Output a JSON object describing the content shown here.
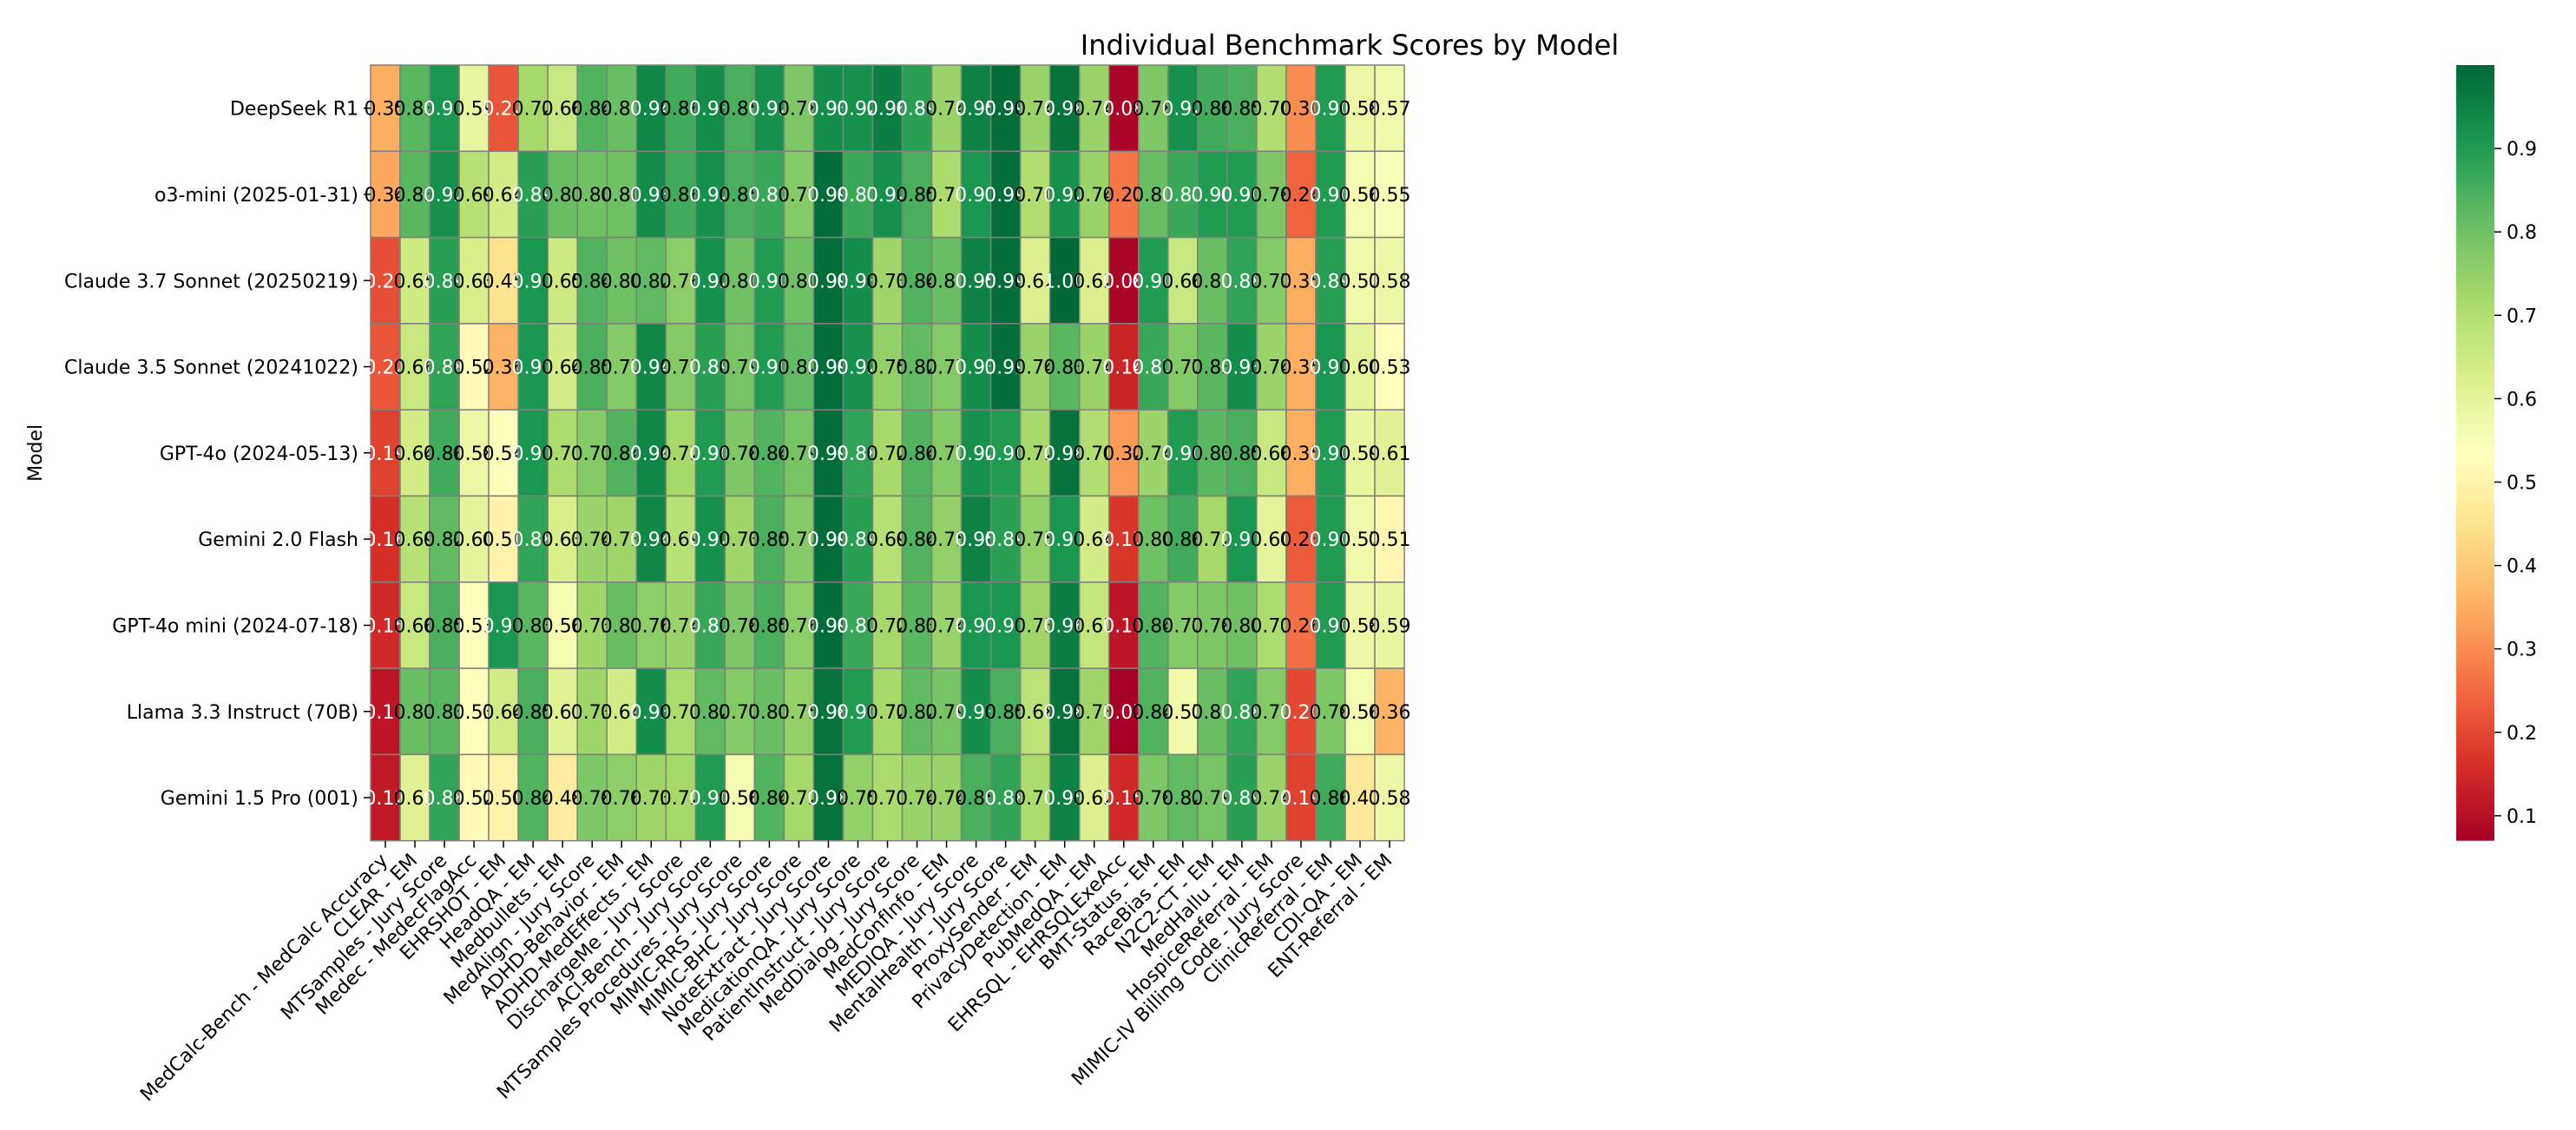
{
  "chart_data": {
    "type": "heatmap",
    "title": "Individual Benchmark Scores by Model",
    "xlabel": "",
    "ylabel": "Model",
    "colormap": "RdYlGn",
    "color_range": [
      0.07,
      1.0
    ],
    "colorbar_ticks": [
      "0.1",
      "0.2",
      "0.3",
      "0.4",
      "0.5",
      "0.6",
      "0.7",
      "0.8",
      "0.9"
    ],
    "rows": [
      "DeepSeek R1",
      "o3-mini (2025-01-31)",
      "Claude 3.7 Sonnet (20250219)",
      "Claude 3.5 Sonnet (20241022)",
      "GPT-4o (2024-05-13)",
      "Gemini 2.0 Flash",
      "GPT-4o mini (2024-07-18)",
      "Llama 3.3 Instruct (70B)",
      "Gemini 1.5 Pro (001)"
    ],
    "columns": [
      "MedCalc-Bench - MedCalc Accuracy",
      "CLEAR - EM",
      "MTSamples - Jury Score",
      "Medec - MedecFlagAcc",
      "EHRSHOT - EM",
      "HeadQA - EM",
      "Medbullets - EM",
      "MedAlign - Jury Score",
      "ADHD-Behavior - EM",
      "ADHD-MedEffects - EM",
      "DischargeMe - Jury Score",
      "ACI-Bench - Jury Score",
      "MTSamples Procedures - Jury Score",
      "MIMIC-RRS - Jury Score",
      "MIMIC-BHC - Jury Score",
      "NoteExtract - Jury Score",
      "MedicationQA - Jury Score",
      "PatientInstruct - Jury Score",
      "MedDialog - Jury Score",
      "MedConfInfo - EM",
      "MEDIQA - Jury Score",
      "MentalHealth - Jury Score",
      "ProxySender - EM",
      "PrivacyDetection - EM",
      "PubMedQA - EM",
      "EHRSQL - EHRSQLExeAcc",
      "BMT-Status - EM",
      "RaceBias - EM",
      "N2C2-CT - EM",
      "MedHallu - EM",
      "HospiceReferral - EM",
      "MIMIC-IV Billing Code - Jury Score",
      "ClinicReferral - EM",
      "CDI-QA - EM",
      "ENT-Referral - EM"
    ],
    "values": [
      [
        0.35,
        0.83,
        0.91,
        0.59,
        0.22,
        0.72,
        0.66,
        0.84,
        0.81,
        0.94,
        0.86,
        0.93,
        0.85,
        0.92,
        0.78,
        0.93,
        0.92,
        0.96,
        0.89,
        0.74,
        0.95,
        0.99,
        0.74,
        0.98,
        0.74,
        0.08,
        0.78,
        0.92,
        0.86,
        0.85,
        0.7,
        0.3,
        0.9,
        0.58,
        0.57
      ],
      [
        0.34,
        0.83,
        0.92,
        0.69,
        0.64,
        0.89,
        0.81,
        0.8,
        0.8,
        0.93,
        0.86,
        0.92,
        0.85,
        0.87,
        0.77,
        0.99,
        0.87,
        0.92,
        0.85,
        0.71,
        0.91,
        0.99,
        0.7,
        0.92,
        0.74,
        0.27,
        0.81,
        0.87,
        0.9,
        0.9,
        0.78,
        0.24,
        0.9,
        0.56,
        0.55
      ],
      [
        0.21,
        0.65,
        0.89,
        0.63,
        0.45,
        0.91,
        0.65,
        0.84,
        0.8,
        0.82,
        0.76,
        0.92,
        0.8,
        0.9,
        0.8,
        0.99,
        0.93,
        0.73,
        0.84,
        0.81,
        0.95,
        0.99,
        0.62,
        1.0,
        0.62,
        0.08,
        0.9,
        0.66,
        0.81,
        0.88,
        0.77,
        0.35,
        0.89,
        0.57,
        0.58
      ],
      [
        0.22,
        0.66,
        0.88,
        0.52,
        0.36,
        0.91,
        0.64,
        0.85,
        0.77,
        0.94,
        0.77,
        0.89,
        0.79,
        0.9,
        0.82,
        0.99,
        0.92,
        0.75,
        0.82,
        0.77,
        0.93,
        0.99,
        0.74,
        0.83,
        0.74,
        0.14,
        0.87,
        0.77,
        0.83,
        0.93,
        0.74,
        0.35,
        0.91,
        0.6,
        0.53
      ],
      [
        0.19,
        0.64,
        0.86,
        0.58,
        0.54,
        0.91,
        0.71,
        0.77,
        0.84,
        0.94,
        0.72,
        0.9,
        0.78,
        0.84,
        0.79,
        0.99,
        0.88,
        0.72,
        0.84,
        0.77,
        0.92,
        0.9,
        0.72,
        0.98,
        0.7,
        0.32,
        0.74,
        0.9,
        0.83,
        0.85,
        0.66,
        0.35,
        0.9,
        0.59,
        0.61
      ],
      [
        0.16,
        0.69,
        0.82,
        0.6,
        0.5,
        0.88,
        0.63,
        0.74,
        0.73,
        0.94,
        0.69,
        0.92,
        0.73,
        0.85,
        0.77,
        0.99,
        0.89,
        0.69,
        0.84,
        0.75,
        0.95,
        0.89,
        0.75,
        0.91,
        0.64,
        0.17,
        0.8,
        0.86,
        0.72,
        0.91,
        0.6,
        0.23,
        0.9,
        0.57,
        0.51
      ],
      [
        0.15,
        0.66,
        0.85,
        0.53,
        0.91,
        0.83,
        0.56,
        0.73,
        0.81,
        0.76,
        0.74,
        0.87,
        0.78,
        0.85,
        0.76,
        0.99,
        0.87,
        0.72,
        0.83,
        0.74,
        0.91,
        0.91,
        0.73,
        0.96,
        0.67,
        0.11,
        0.84,
        0.77,
        0.78,
        0.8,
        0.71,
        0.26,
        0.9,
        0.58,
        0.59
      ],
      [
        0.11,
        0.81,
        0.83,
        0.53,
        0.64,
        0.85,
        0.61,
        0.73,
        0.64,
        0.93,
        0.71,
        0.82,
        0.77,
        0.81,
        0.75,
        0.98,
        0.9,
        0.72,
        0.82,
        0.79,
        0.93,
        0.85,
        0.68,
        0.98,
        0.73,
        0.07,
        0.84,
        0.57,
        0.81,
        0.88,
        0.77,
        0.2,
        0.78,
        0.56,
        0.36
      ],
      [
        0.12,
        0.61,
        0.88,
        0.52,
        0.5,
        0.84,
        0.48,
        0.78,
        0.76,
        0.73,
        0.72,
        0.9,
        0.56,
        0.84,
        0.72,
        0.98,
        0.75,
        0.71,
        0.74,
        0.74,
        0.85,
        0.88,
        0.71,
        0.95,
        0.62,
        0.15,
        0.78,
        0.82,
        0.79,
        0.89,
        0.74,
        0.19,
        0.86,
        0.47,
        0.58
      ]
    ]
  }
}
